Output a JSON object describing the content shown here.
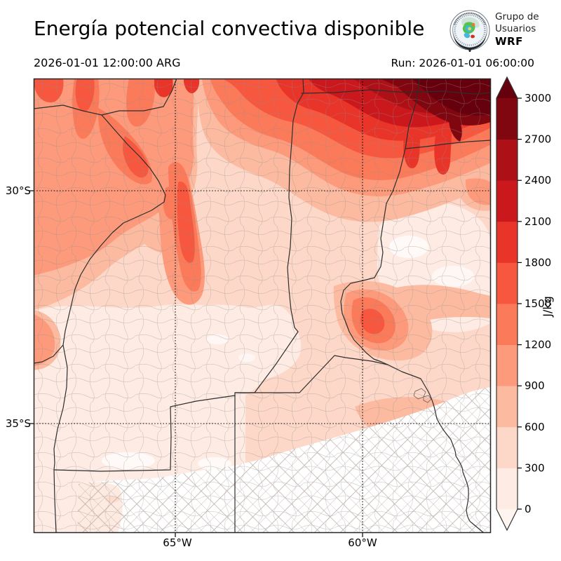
{
  "header": {
    "title": "Energía potencial convectiva disponible"
  },
  "logo": {
    "line1": "Grupo de",
    "line2": "Usuarios",
    "line3": "WRF"
  },
  "times": {
    "valid": "2026-01-01 12:00:00 ARG",
    "run": "Run: 2026-01-01 06:00:00"
  },
  "axes": {
    "y_ticks": [
      "30°S",
      "35°S"
    ],
    "x_ticks": [
      "65°W",
      "60°W"
    ]
  },
  "colorbar": {
    "unit": "J/kg",
    "tick_labels": [
      "3000",
      "2700",
      "2400",
      "2100",
      "1800",
      "1500",
      "1200",
      "900",
      "600",
      "300",
      "0"
    ],
    "levels": [
      0,
      300,
      600,
      900,
      1200,
      1500,
      1800,
      2100,
      2400,
      2700,
      3000
    ],
    "segment_colors_bottom_to_top": [
      "#feece4",
      "#fdd8c8",
      "#fcbba1",
      "#fc9a7b",
      "#fb7a5a",
      "#f6573e",
      "#e83429",
      "#cb181d",
      "#ad1117",
      "#800610"
    ],
    "under_arrow_color": "#fff5f0",
    "over_arrow_color": "#67000d"
  },
  "chart_data": {
    "type": "heatmap",
    "title": "Energía potencial convectiva disponible",
    "variable": "CAPE (convective available potential energy)",
    "unit": "J/kg",
    "levels": [
      0,
      300,
      600,
      900,
      1200,
      1500,
      1800,
      2100,
      2400,
      2700,
      3000
    ],
    "extend": "both",
    "x_tick_labels": [
      "65°W",
      "60°W"
    ],
    "y_tick_labels": [
      "30°S",
      "35°S"
    ],
    "legend_position": "right colorbar",
    "grid": "dotted lat/lon graticule",
    "field_estimates_jkg": {
      "northeast_corner": 3000,
      "north_band": 2100,
      "northwest_highlands_streaks": 1500,
      "cordoba_north_streak": 1500,
      "west_center": 800,
      "center": 450,
      "parana_river_blob": 1200,
      "entre_rios": 250,
      "buenos_aires_southeast": 0,
      "la_pampa_southwest": 150
    }
  }
}
